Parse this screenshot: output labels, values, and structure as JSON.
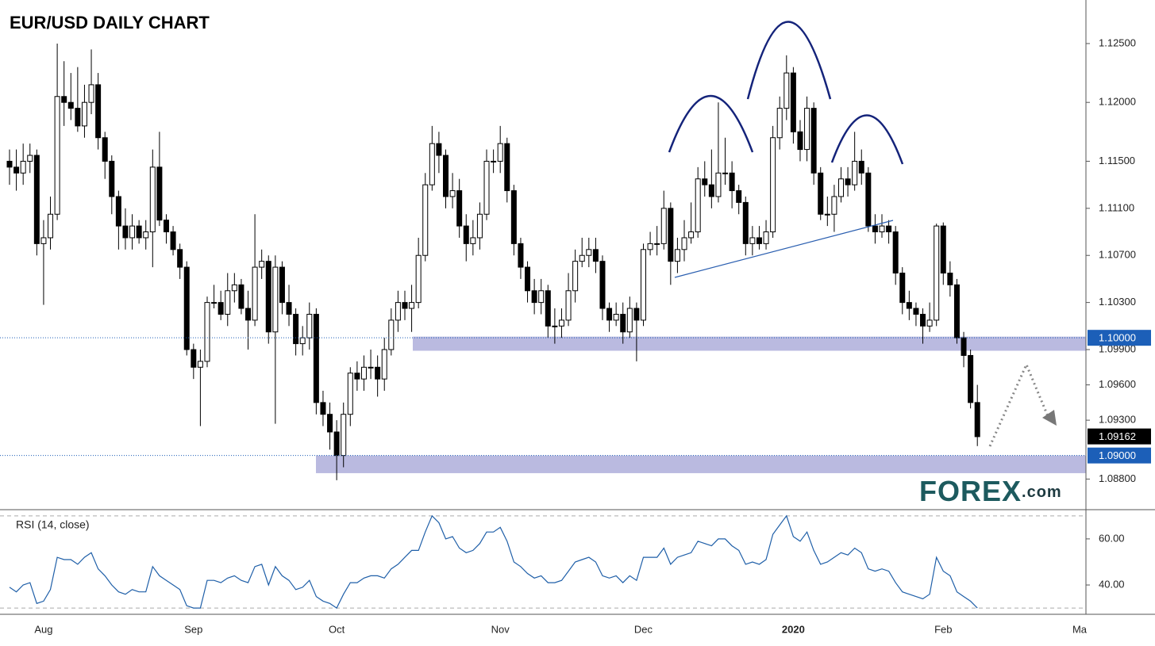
{
  "chart_data": {
    "type": "candlestick",
    "title": "EUR/USD DAILY CHART",
    "categories": [
      null,
      null,
      null,
      null,
      null,
      "Aug",
      null,
      null,
      null,
      null,
      null,
      null,
      null,
      null,
      null,
      null,
      null,
      null,
      null,
      null,
      null,
      null,
      null,
      null,
      null,
      null,
      null,
      "Sep",
      null,
      null,
      null,
      null,
      null,
      null,
      null,
      null,
      null,
      null,
      null,
      null,
      null,
      null,
      null,
      null,
      null,
      null,
      null,
      null,
      "Oct",
      null,
      null,
      null,
      null,
      null,
      null,
      null,
      null,
      null,
      null,
      null,
      null,
      null,
      null,
      null,
      null,
      null,
      null,
      null,
      null,
      null,
      null,
      null,
      "Nov",
      null,
      null,
      null,
      null,
      null,
      null,
      null,
      null,
      null,
      null,
      null,
      null,
      null,
      null,
      null,
      null,
      null,
      null,
      null,
      null,
      "Dec",
      null,
      null,
      null,
      null,
      null,
      null,
      null,
      null,
      null,
      null,
      null,
      null,
      null,
      null,
      null,
      null,
      null,
      null,
      null,
      null,
      null,
      "2020",
      null,
      null,
      null,
      null,
      null,
      null,
      null,
      null,
      null,
      null,
      null,
      null,
      null,
      null,
      null,
      null,
      null,
      null,
      null,
      null,
      null,
      "Feb",
      null,
      null,
      null,
      null,
      null,
      null,
      null,
      null,
      null,
      null,
      null,
      null,
      null,
      null,
      null,
      null,
      null,
      null,
      null,
      "Ma"
    ],
    "open": [
      1.115,
      1.1145,
      1.114,
      1.115,
      1.1155,
      1.108,
      1.1085,
      1.1105,
      1.1205,
      1.12,
      1.1195,
      1.118,
      1.12,
      1.1215,
      1.117,
      1.115,
      1.112,
      1.1095,
      1.1085,
      1.1095,
      1.1085,
      1.109,
      1.1145,
      1.11,
      1.109,
      1.1075,
      1.106,
      1.099,
      1.0975,
      1.098,
      1.103,
      1.103,
      1.102,
      1.104,
      1.1045,
      1.1025,
      1.1015,
      1.106,
      1.1065,
      1.1005,
      1.106,
      1.103,
      1.102,
      1.0995,
      1.1,
      1.102,
      1.0945,
      1.0935,
      1.092,
      1.09,
      1.0935,
      1.097,
      1.0965,
      1.0975,
      1.0975,
      1.0965,
      1.099,
      1.1015,
      1.103,
      1.1025,
      1.103,
      1.107,
      1.113,
      1.1165,
      1.1155,
      1.112,
      1.1125,
      1.1095,
      1.108,
      1.1085,
      1.1105,
      1.115,
      1.115,
      1.1165,
      1.1125,
      1.108,
      1.106,
      1.104,
      1.103,
      1.104,
      1.101,
      1.101,
      1.1015,
      1.104,
      1.1065,
      1.107,
      1.1075,
      1.1065,
      1.1025,
      1.1015,
      1.102,
      1.1005,
      1.1025,
      1.1015,
      1.1075,
      1.108,
      1.108,
      1.111,
      1.1065,
      1.1075,
      1.1085,
      1.109,
      1.1135,
      1.113,
      1.112,
      1.114,
      1.114,
      1.1125,
      1.1115,
      1.108,
      1.1085,
      1.108,
      1.109,
      1.117,
      1.1195,
      1.1225,
      1.1175,
      1.116,
      1.1195,
      1.114,
      1.1105,
      1.1105,
      1.112,
      1.1135,
      1.113,
      1.115,
      1.114,
      1.1095,
      1.109,
      1.1095,
      1.109,
      1.1055,
      1.103,
      1.1025,
      1.102,
      1.101,
      1.1015,
      1.1095,
      1.1055,
      1.1045,
      1.1,
      1.0985,
      1.0945,
      null,
      null,
      null,
      null,
      null,
      null,
      null,
      null,
      null,
      null,
      null,
      null,
      null,
      null,
      null
    ],
    "high": [
      1.116,
      1.116,
      1.1165,
      1.1165,
      1.116,
      1.11,
      1.112,
      1.125,
      1.1235,
      1.1225,
      1.123,
      1.1215,
      1.1245,
      1.1225,
      1.1175,
      1.1155,
      1.1125,
      1.111,
      1.1105,
      1.11,
      1.11,
      1.116,
      1.1175,
      1.1105,
      1.1095,
      1.108,
      1.1065,
      1.0995,
      1.099,
      1.1035,
      1.1045,
      1.104,
      1.1055,
      1.1055,
      1.105,
      1.104,
      1.1105,
      1.1075,
      1.107,
      1.107,
      1.1065,
      1.1045,
      1.1025,
      1.101,
      1.103,
      1.1025,
      1.0955,
      1.0945,
      1.093,
      1.0945,
      1.0975,
      1.098,
      1.0985,
      1.099,
      1.0985,
      1.1,
      1.1025,
      1.104,
      1.104,
      1.1045,
      1.1085,
      1.114,
      1.118,
      1.1175,
      1.116,
      1.114,
      1.1135,
      1.1105,
      1.11,
      1.1115,
      1.116,
      1.116,
      1.118,
      1.117,
      1.113,
      1.1085,
      1.1065,
      1.105,
      1.105,
      1.1045,
      1.1025,
      1.1025,
      1.1055,
      1.1075,
      1.1085,
      1.1085,
      1.1085,
      1.107,
      1.103,
      1.103,
      1.103,
      1.1035,
      1.103,
      1.108,
      1.109,
      1.1095,
      1.1125,
      1.1115,
      1.1085,
      1.11,
      1.1115,
      1.1145,
      1.115,
      1.116,
      1.12,
      1.117,
      1.115,
      1.113,
      1.112,
      1.1095,
      1.1095,
      1.11,
      1.118,
      1.1205,
      1.124,
      1.123,
      1.1185,
      1.1205,
      1.12,
      1.1145,
      1.112,
      1.113,
      1.1145,
      1.1145,
      1.1175,
      1.116,
      1.1145,
      1.1105,
      1.1105,
      1.11,
      1.1095,
      1.106,
      1.104,
      1.103,
      1.1025,
      1.103,
      1.1097,
      1.1098,
      1.1065,
      1.105,
      1.1005,
      1.099,
      1.096,
      null,
      null,
      null,
      null,
      null,
      null,
      null,
      null,
      null,
      null,
      null,
      null,
      null,
      null,
      null
    ],
    "low": [
      1.113,
      1.1125,
      1.113,
      1.114,
      1.107,
      1.1028,
      1.1075,
      1.11,
      1.118,
      1.1185,
      1.1175,
      1.117,
      1.119,
      1.116,
      1.1135,
      1.1105,
      1.1075,
      1.1075,
      1.1075,
      1.108,
      1.1075,
      1.106,
      1.1095,
      1.108,
      1.107,
      1.105,
      1.0985,
      1.0965,
      1.0925,
      1.0975,
      1.1025,
      1.1015,
      1.101,
      1.103,
      1.102,
      1.099,
      1.101,
      1.105,
      1.0995,
      1.0927,
      1.102,
      1.101,
      1.0985,
      1.0985,
      1.099,
      1.0935,
      1.0925,
      1.0905,
      1.0879,
      1.089,
      1.0925,
      1.0955,
      1.0955,
      1.0965,
      1.095,
      1.0955,
      1.0985,
      1.1005,
      1.1015,
      1.1005,
      1.1025,
      1.1065,
      1.1125,
      1.114,
      1.111,
      1.111,
      1.1085,
      1.1065,
      1.107,
      1.1075,
      1.11,
      1.114,
      1.114,
      1.1115,
      1.107,
      1.105,
      1.103,
      1.102,
      1.102,
      1.1,
      1.0995,
      1.1,
      1.101,
      1.103,
      1.106,
      1.106,
      1.1055,
      1.1015,
      1.1005,
      1.101,
      1.0995,
      1.1,
      1.098,
      1.101,
      1.107,
      1.107,
      1.1075,
      1.1045,
      1.1055,
      1.1065,
      1.108,
      1.1085,
      1.112,
      1.111,
      1.1115,
      1.113,
      1.111,
      1.1105,
      1.107,
      1.107,
      1.1075,
      1.1075,
      1.1085,
      1.116,
      1.1185,
      1.1165,
      1.115,
      1.115,
      1.113,
      1.11,
      1.1095,
      1.109,
      1.1115,
      1.112,
      1.1125,
      1.113,
      1.109,
      1.108,
      1.1085,
      1.108,
      1.1045,
      1.102,
      1.1015,
      1.101,
      1.0995,
      1.1005,
      1.101,
      1.1045,
      1.1035,
      1.0995,
      1.0975,
      1.094,
      1.0908,
      null,
      null,
      null,
      null,
      null,
      null,
      null,
      null,
      null,
      null,
      null,
      null,
      null,
      null,
      null
    ],
    "close": [
      1.1145,
      1.114,
      1.115,
      1.1155,
      1.108,
      1.1085,
      1.1105,
      1.1205,
      1.12,
      1.1195,
      1.118,
      1.12,
      1.1215,
      1.117,
      1.115,
      1.112,
      1.1095,
      1.1085,
      1.1095,
      1.1085,
      1.109,
      1.1145,
      1.11,
      1.109,
      1.1075,
      1.106,
      1.099,
      1.0975,
      1.098,
      1.103,
      1.103,
      1.102,
      1.104,
      1.1045,
      1.1025,
      1.1015,
      1.106,
      1.1065,
      1.1005,
      1.106,
      1.103,
      1.102,
      1.0995,
      1.1,
      1.102,
      1.0945,
      1.0935,
      1.092,
      1.09,
      1.0935,
      1.097,
      1.0965,
      1.0975,
      1.0975,
      1.0965,
      1.099,
      1.1015,
      1.103,
      1.1025,
      1.103,
      1.107,
      1.113,
      1.1165,
      1.1155,
      1.112,
      1.1125,
      1.1095,
      1.108,
      1.1085,
      1.1105,
      1.115,
      1.115,
      1.1165,
      1.1125,
      1.108,
      1.106,
      1.104,
      1.103,
      1.104,
      1.101,
      1.101,
      1.1015,
      1.104,
      1.1065,
      1.107,
      1.1075,
      1.1065,
      1.1025,
      1.1015,
      1.102,
      1.1005,
      1.1025,
      1.1015,
      1.1075,
      1.108,
      1.108,
      1.111,
      1.1065,
      1.1075,
      1.1085,
      1.109,
      1.1135,
      1.113,
      1.112,
      1.114,
      1.114,
      1.1125,
      1.1115,
      1.108,
      1.1085,
      1.108,
      1.109,
      1.117,
      1.1195,
      1.1225,
      1.1175,
      1.116,
      1.1195,
      1.114,
      1.1105,
      1.1105,
      1.112,
      1.1135,
      1.113,
      1.115,
      1.114,
      1.1095,
      1.109,
      1.1095,
      1.109,
      1.1055,
      1.103,
      1.1025,
      1.102,
      1.101,
      1.1015,
      1.1095,
      1.1055,
      1.1045,
      1.1,
      1.0985,
      1.0945,
      1.0916,
      null,
      null,
      null,
      null,
      null,
      null,
      null,
      null,
      null,
      null,
      null,
      null,
      null,
      null,
      null
    ],
    "up_color": "#ffffff",
    "down_color": "#000000",
    "ylim": [
      1.0856,
      1.1287
    ],
    "yticks": [
      {
        "value": 1.125,
        "label": "1.12500"
      },
      {
        "value": 1.12,
        "label": "1.12000"
      },
      {
        "value": 1.115,
        "label": "1.11500"
      },
      {
        "value": 1.111,
        "label": "1.11100"
      },
      {
        "value": 1.107,
        "label": "1.10700"
      },
      {
        "value": 1.103,
        "label": "1.10300"
      },
      {
        "value": 1.099,
        "label": "1.09900"
      },
      {
        "value": 1.096,
        "label": "1.09600"
      },
      {
        "value": 1.093,
        "label": "1.09300"
      },
      {
        "value": 1.088,
        "label": "1.08800"
      }
    ],
    "price_labels": [
      {
        "value": 1.1,
        "label": "1.10000",
        "color": "#1c5fb8"
      },
      {
        "value": 1.09162,
        "label": "1.09162",
        "color": "#000000"
      },
      {
        "value": 1.09,
        "label": "1.09000",
        "color": "#1c5fb8"
      }
    ],
    "zones": [
      {
        "from": 1.0989,
        "to": 1.1001,
        "color": "#b3b3dd"
      },
      {
        "from": 1.0885,
        "to": 1.09,
        "color": "#b3b3dd"
      }
    ],
    "logo": {
      "brand": "FOREX",
      "domain": ".com"
    },
    "indicator": {
      "type": "line",
      "name": "RSI (14, close)",
      "color": "#1f5fa8",
      "values": [
        39,
        37,
        40,
        41,
        32,
        33,
        38,
        52,
        51,
        51,
        49,
        52,
        54,
        47,
        44,
        40,
        37,
        36,
        38,
        37,
        37,
        48,
        44,
        42,
        40,
        38,
        31,
        30,
        30,
        42,
        42,
        41,
        43,
        44,
        42,
        41,
        48,
        49,
        40,
        48,
        44,
        42,
        38,
        39,
        42,
        35,
        33,
        32,
        30,
        36,
        41,
        41,
        43,
        44,
        44,
        43,
        47,
        49,
        52,
        55,
        55,
        63,
        70,
        67,
        60,
        61,
        56,
        54,
        55,
        58,
        63,
        63,
        65,
        59,
        50,
        48,
        45,
        43,
        44,
        41,
        41,
        42,
        46,
        50,
        51,
        52,
        50,
        44,
        43,
        44,
        41,
        44,
        42,
        52,
        52,
        52,
        56,
        49,
        52,
        53,
        54,
        59,
        58,
        57,
        60,
        60,
        57,
        55,
        49,
        50,
        49,
        51,
        62,
        66,
        70,
        61,
        59,
        63,
        55,
        49,
        50,
        52,
        54,
        53,
        56,
        54,
        47,
        46,
        47,
        46,
        41,
        37,
        36,
        35,
        34,
        36,
        52,
        46,
        44,
        37,
        35,
        33,
        30,
        null,
        null,
        null,
        null,
        null,
        null,
        null,
        null,
        null,
        null,
        null,
        null,
        null,
        null,
        null
      ],
      "ylim": [
        29,
        72
      ],
      "yticks": [
        {
          "value": 60,
          "label": "60.00"
        },
        {
          "value": 40,
          "label": "40.00"
        }
      ],
      "levels": [
        70,
        30
      ]
    }
  }
}
